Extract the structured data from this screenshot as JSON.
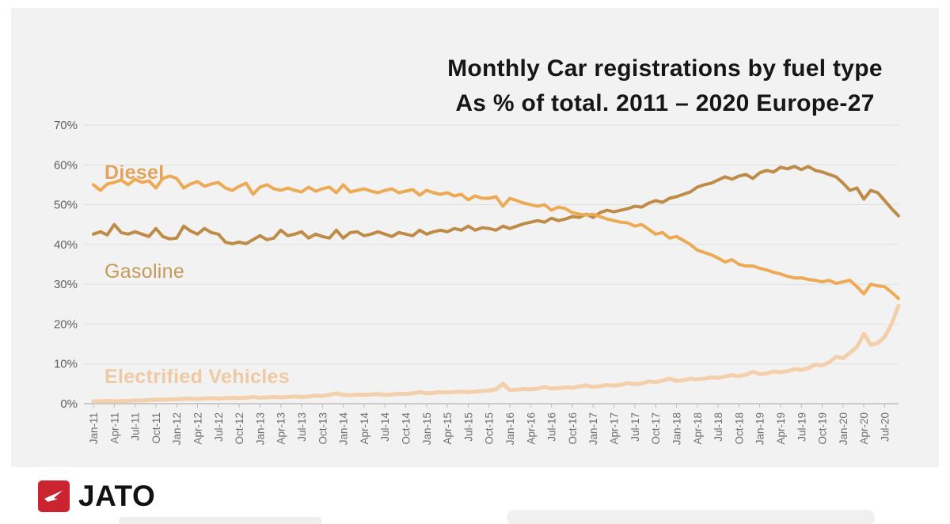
{
  "title": {
    "line1": "Monthly Car registrations by fuel type",
    "line2": "As % of total. 2011 – 2020 Europe-27"
  },
  "logo": {
    "brand": "JATO",
    "icon_color": "#c9242f"
  },
  "colors": {
    "card_background": "#f2f2f2",
    "grid": "#e0e0e0",
    "axis": "#bdbdbd",
    "title_text": "#161616"
  },
  "chart_data": {
    "type": "line",
    "title": "Monthly Car registrations by fuel type",
    "subtitle": "As % of total. 2011 – 2020 Europe-27",
    "xlabel": "",
    "ylabel": "",
    "ylim": [
      0,
      70
    ],
    "y_ticks": [
      0,
      10,
      20,
      30,
      40,
      50,
      60,
      70
    ],
    "y_tick_suffix": "%",
    "grid": "horizontal",
    "legend_position": "inline-labels",
    "x_monthly_start": "Jan-11",
    "x_monthly_end": "Sep-20",
    "x_tick_every_n_months": 3,
    "x_tick_labels": [
      "Jan-11",
      "Apr-11",
      "Jul-11",
      "Oct-11",
      "Jan-12",
      "Apr-12",
      "Jul-12",
      "Oct-12",
      "Jan-13",
      "Apr-13",
      "Jul-13",
      "Oct-13",
      "Jan-14",
      "Apr-14",
      "Jul-14",
      "Oct-14",
      "Jan-15",
      "Apr-15",
      "Jul-15",
      "Oct-15",
      "Jan-16",
      "Apr-16",
      "Jul-16",
      "Oct-16",
      "Jan-17",
      "Apr-17",
      "Jul-17",
      "Oct-17",
      "Jan-18",
      "Apr-18",
      "Jul-18",
      "Oct-18",
      "Jan-19",
      "Apr-19",
      "Jul-19",
      "Oct-19",
      "Jan-20",
      "Apr-20",
      "Jul-20"
    ],
    "series": [
      {
        "name": "Diesel",
        "color": "#ecaa55",
        "label_color": "#e0a55c",
        "stroke_width": 4,
        "values": [
          55.0,
          53.6,
          55.2,
          55.6,
          56.2,
          55.0,
          56.4,
          55.6,
          56.0,
          54.2,
          56.6,
          57.2,
          56.6,
          54.2,
          55.2,
          55.8,
          54.6,
          55.2,
          55.6,
          54.2,
          53.6,
          54.6,
          55.4,
          52.6,
          54.4,
          55.0,
          54.0,
          53.6,
          54.2,
          53.6,
          53.2,
          54.4,
          53.4,
          54.0,
          54.4,
          53.0,
          55.0,
          53.2,
          53.6,
          54.0,
          53.4,
          53.0,
          53.6,
          54.0,
          53.0,
          53.4,
          53.8,
          52.4,
          53.6,
          53.0,
          52.6,
          53.0,
          52.2,
          52.6,
          51.2,
          52.2,
          51.6,
          51.6,
          52.0,
          49.6,
          51.6,
          51.0,
          50.4,
          50.0,
          49.6,
          50.0,
          48.6,
          49.4,
          49.0,
          48.0,
          47.6,
          47.4,
          47.6,
          47.0,
          46.4,
          46.0,
          45.6,
          45.4,
          44.6,
          45.0,
          43.8,
          42.6,
          43.0,
          41.6,
          42.0,
          41.0,
          40.0,
          38.6,
          38.0,
          37.4,
          36.6,
          35.6,
          36.2,
          35.0,
          34.6,
          34.6,
          34.0,
          33.6,
          33.0,
          32.6,
          32.0,
          31.6,
          31.6,
          31.2,
          31.0,
          30.6,
          31.0,
          30.2,
          30.6,
          31.0,
          29.4,
          27.6,
          30.0,
          29.6,
          29.4,
          28.0,
          26.4
        ]
      },
      {
        "name": "Gasoline",
        "color": "#bf8c48",
        "label_color": "#c49a58",
        "stroke_width": 4,
        "values": [
          42.6,
          43.2,
          42.4,
          45.0,
          43.0,
          42.6,
          43.2,
          42.6,
          42.0,
          44.0,
          42.0,
          41.4,
          41.6,
          44.6,
          43.4,
          42.6,
          44.0,
          43.0,
          42.6,
          40.6,
          40.2,
          40.6,
          40.2,
          41.2,
          42.2,
          41.2,
          41.6,
          43.6,
          42.2,
          42.6,
          43.2,
          41.6,
          42.6,
          42.0,
          41.6,
          43.6,
          41.6,
          43.0,
          43.2,
          42.2,
          42.6,
          43.2,
          42.6,
          42.0,
          43.0,
          42.6,
          42.2,
          43.6,
          42.6,
          43.2,
          43.6,
          43.2,
          44.0,
          43.6,
          44.6,
          43.6,
          44.2,
          44.0,
          43.6,
          44.6,
          44.0,
          44.6,
          45.2,
          45.6,
          46.0,
          45.6,
          46.6,
          46.0,
          46.4,
          47.0,
          46.8,
          47.6,
          46.8,
          48.0,
          48.6,
          48.2,
          48.6,
          49.0,
          49.6,
          49.4,
          50.4,
          51.0,
          50.6,
          51.6,
          52.0,
          52.6,
          53.2,
          54.4,
          55.0,
          55.4,
          56.2,
          57.0,
          56.4,
          57.2,
          57.6,
          56.6,
          58.0,
          58.6,
          58.2,
          59.4,
          59.0,
          59.6,
          58.8,
          59.6,
          58.6,
          58.2,
          57.6,
          57.0,
          55.4,
          53.6,
          54.2,
          51.4,
          53.6,
          53.0,
          51.0,
          49.0,
          47.2
        ]
      },
      {
        "name": "Electrified Vehicles",
        "color": "#f3d0ab",
        "label_color": "#eec9a4",
        "stroke_width": 5,
        "values": [
          0.6,
          0.6,
          0.7,
          0.6,
          0.7,
          0.7,
          0.8,
          0.8,
          0.9,
          1.0,
          1.0,
          1.1,
          1.1,
          1.2,
          1.3,
          1.2,
          1.3,
          1.4,
          1.3,
          1.4,
          1.5,
          1.4,
          1.5,
          1.7,
          1.5,
          1.6,
          1.7,
          1.6,
          1.7,
          1.8,
          1.7,
          1.8,
          2.0,
          1.9,
          2.2,
          2.6,
          2.2,
          2.1,
          2.3,
          2.2,
          2.3,
          2.4,
          2.2,
          2.3,
          2.5,
          2.4,
          2.6,
          2.9,
          2.6,
          2.7,
          2.9,
          2.8,
          2.9,
          3.0,
          2.9,
          3.0,
          3.2,
          3.3,
          3.6,
          5.0,
          3.4,
          3.5,
          3.7,
          3.6,
          3.8,
          4.2,
          3.8,
          3.9,
          4.1,
          4.0,
          4.3,
          4.6,
          4.2,
          4.4,
          4.7,
          4.5,
          4.8,
          5.2,
          4.9,
          5.1,
          5.6,
          5.4,
          5.8,
          6.3,
          5.7,
          5.9,
          6.3,
          6.1,
          6.3,
          6.6,
          6.5,
          6.8,
          7.2,
          6.9,
          7.3,
          8.0,
          7.4,
          7.6,
          8.1,
          7.9,
          8.2,
          8.7,
          8.5,
          8.9,
          9.8,
          9.6,
          10.4,
          11.8,
          11.4,
          12.8,
          14.2,
          17.6,
          14.8,
          15.2,
          16.8,
          20.0,
          24.6
        ]
      }
    ]
  }
}
